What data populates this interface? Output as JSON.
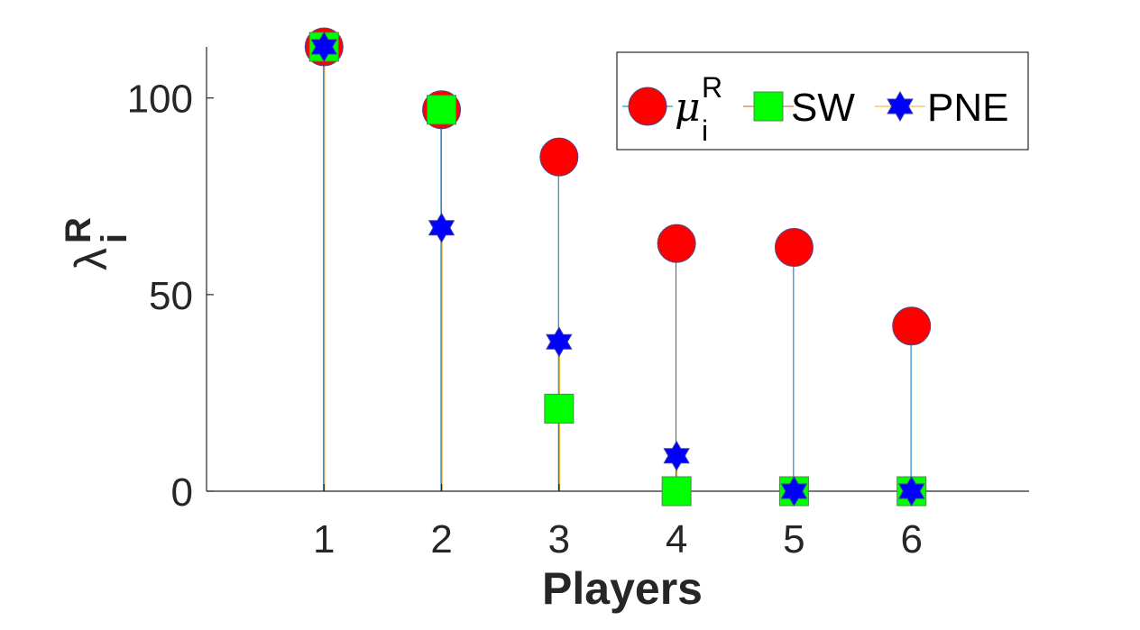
{
  "chart_data": {
    "type": "stem",
    "title": "",
    "xlabel": "Players",
    "ylabel": {
      "base": "λ",
      "sup": "R",
      "sub": "i"
    },
    "xlim": [
      0,
      7
    ],
    "ylim": [
      0,
      113
    ],
    "x": [
      1,
      2,
      3,
      4,
      5,
      6
    ],
    "xticks": [
      1,
      2,
      3,
      4,
      5,
      6
    ],
    "yticks": [
      0,
      50,
      100
    ],
    "grid": false,
    "legend_position": "top-right",
    "legend_orientation": "horizontal",
    "series": [
      {
        "name": "μ_i^R",
        "legend": {
          "base": "μ",
          "sup": "R",
          "sub": "i"
        },
        "marker": "circle",
        "color": "#ff0000",
        "stem_color": "#0072bd",
        "values": [
          113,
          97,
          85,
          63,
          62,
          42
        ]
      },
      {
        "name": "SW",
        "legend": {
          "base": "SW"
        },
        "marker": "square",
        "color": "#00ff00",
        "stem_color": "#d95319",
        "values": [
          113,
          97,
          21,
          0,
          0,
          0
        ]
      },
      {
        "name": "PNE",
        "legend": {
          "base": "PNE"
        },
        "marker": "hexagram",
        "color": "#0000ff",
        "stem_color": "#edb120",
        "values": [
          113,
          67,
          38,
          9,
          0,
          0
        ]
      }
    ]
  }
}
